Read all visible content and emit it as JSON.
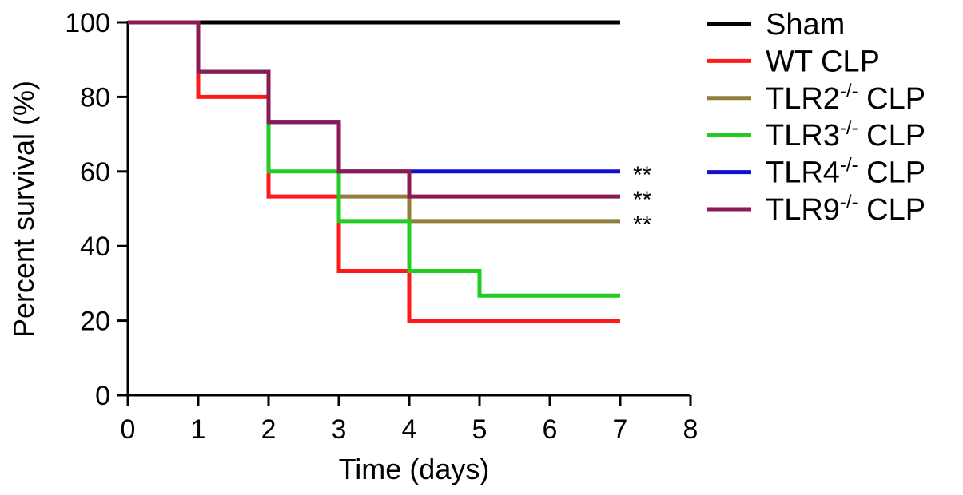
{
  "chart_data": {
    "type": "line",
    "step": true,
    "xlabel": "Time (days)",
    "ylabel": "Percent survival (%)",
    "xlim": [
      0,
      8
    ],
    "ylim": [
      0,
      100
    ],
    "xticks": [
      "0",
      "1",
      "2",
      "3",
      "4",
      "5",
      "6",
      "7",
      "8"
    ],
    "yticks": [
      "0",
      "20",
      "40",
      "60",
      "80",
      "100"
    ],
    "grid": false,
    "legend_position": "right",
    "series": [
      {
        "name": "Sham",
        "name_base": "Sham",
        "name_sup": "",
        "name_suffix": "",
        "color": "#000000",
        "x": [
          0,
          7
        ],
        "y": [
          100,
          100
        ]
      },
      {
        "name": "WT CLP",
        "name_base": "WT CLP",
        "name_sup": "",
        "name_suffix": "",
        "color": "#ff1a1a",
        "x": [
          0,
          1,
          2,
          3,
          4,
          7
        ],
        "y": [
          100,
          80,
          53.3,
          33.3,
          20,
          20
        ]
      },
      {
        "name": "TLR2-/- CLP",
        "name_base": "TLR2",
        "name_sup": "-/-",
        "name_suffix": " CLP",
        "color": "#8f7f3a",
        "x": [
          0,
          1,
          2,
          3,
          4,
          7
        ],
        "y": [
          100,
          86.7,
          73.3,
          53.3,
          46.7,
          46.7
        ]
      },
      {
        "name": "TLR3-/- CLP",
        "name_base": "TLR3",
        "name_sup": "-/-",
        "name_suffix": " CLP",
        "color": "#22cc22",
        "x": [
          0,
          1,
          2,
          3,
          4,
          5,
          7
        ],
        "y": [
          100,
          86.7,
          60,
          46.7,
          33.3,
          26.7,
          26.7
        ]
      },
      {
        "name": "TLR4-/- CLP",
        "name_base": "TLR4",
        "name_sup": "-/-",
        "name_suffix": " CLP",
        "color": "#1010d0",
        "x": [
          0,
          1,
          2,
          3,
          7
        ],
        "y": [
          100,
          86.7,
          73.3,
          60,
          60
        ]
      },
      {
        "name": "TLR9-/- CLP",
        "name_base": "TLR9",
        "name_sup": "-/-",
        "name_suffix": " CLP",
        "color": "#8b1a55",
        "x": [
          0,
          1,
          2,
          3,
          4,
          7
        ],
        "y": [
          100,
          86.7,
          73.3,
          60,
          53.3,
          53.3
        ]
      }
    ],
    "annotations": [
      {
        "text": "**",
        "x": 7,
        "y": 60
      },
      {
        "text": "**",
        "x": 7,
        "y": 53.3
      },
      {
        "text": "**",
        "x": 7,
        "y": 46.7
      }
    ]
  }
}
